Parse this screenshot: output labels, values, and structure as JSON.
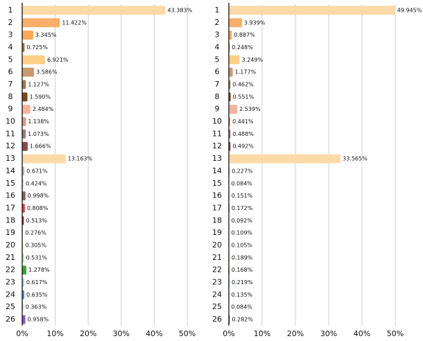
{
  "chart_data": [
    {
      "type": "bar",
      "orientation": "horizontal",
      "categories": [
        "1",
        "2",
        "3",
        "4",
        "5",
        "6",
        "7",
        "8",
        "9",
        "10",
        "11",
        "12",
        "13",
        "14",
        "15",
        "16",
        "17",
        "18",
        "19",
        "20",
        "21",
        "22",
        "23",
        "24",
        "25",
        "26"
      ],
      "values": [
        43.383,
        11.422,
        3.345,
        0.725,
        6.921,
        3.586,
        1.127,
        1.59,
        2.484,
        1.138,
        1.073,
        1.666,
        13.163,
        0.671,
        0.424,
        0.998,
        0.808,
        0.513,
        0.276,
        0.305,
        0.531,
        1.278,
        0.617,
        0.635,
        0.363,
        0.958
      ],
      "value_labels": [
        "43.383%",
        "11.422%",
        "3.345%",
        "0.725%",
        "6.921%",
        "3.586%",
        "1.127%",
        "1.590%",
        "2.484%",
        "1.138%",
        "1.073%",
        "1.666%",
        "13.163%",
        "0.671%",
        "0.424%",
        "0.998%",
        "0.808%",
        "0.513%",
        "0.276%",
        "0.305%",
        "0.531%",
        "1.278%",
        "0.617%",
        "0.635%",
        "0.363%",
        "0.958%"
      ],
      "colors": [
        "#fdd9a8",
        "#fdae6b",
        "#fca75a",
        "#a0703c",
        "#fdd08a",
        "#c99a6b",
        "#9c7a5a",
        "#7a4a1e",
        "#f4b3a0",
        "#d49a8a",
        "#a07a7a",
        "#8a4a4a",
        "#fdd9a8",
        "#c0b8b0",
        "#d8d8d8",
        "#7a6a5a",
        "#e04040",
        "#b03030",
        "#f0e8b0",
        "#f0e0b0",
        "#c0e0b0",
        "#40a040",
        "#b0d0f0",
        "#5090d0",
        "#d8d0f0",
        "#8060c0"
      ],
      "xlim": [
        0,
        50
      ],
      "xticks": [
        {
          "value": 0,
          "label": "0%"
        },
        {
          "value": 10,
          "label": "10%"
        },
        {
          "value": 20,
          "label": "20%"
        },
        {
          "value": 30,
          "label": "30%"
        },
        {
          "value": 40,
          "label": "40%"
        },
        {
          "value": 50,
          "label": "50%"
        }
      ],
      "grid": true
    },
    {
      "type": "bar",
      "orientation": "horizontal",
      "categories": [
        "1",
        "2",
        "3",
        "4",
        "5",
        "6",
        "7",
        "8",
        "9",
        "10",
        "11",
        "12",
        "13",
        "14",
        "15",
        "16",
        "17",
        "18",
        "19",
        "20",
        "21",
        "22",
        "23",
        "24",
        "25",
        "26"
      ],
      "values": [
        49.945,
        3.939,
        0.887,
        0.248,
        3.249,
        1.177,
        0.462,
        0.551,
        2.539,
        0.441,
        0.488,
        0.492,
        33.565,
        0.227,
        0.084,
        0.151,
        0.172,
        0.092,
        0.109,
        0.105,
        0.189,
        0.168,
        0.219,
        0.135,
        0.084,
        0.282
      ],
      "value_labels": [
        "49.945%",
        "3.939%",
        "0.887%",
        "0.248%",
        "3.249%",
        "1.177%",
        "0.462%",
        "0.551%",
        "2.539%",
        "0.441%",
        "0.488%",
        "0.492%",
        "33.565%",
        "0.227%",
        "0.084%",
        "0.151%",
        "0.172%",
        "0.092%",
        "0.109%",
        "0.105%",
        "0.189%",
        "0.168%",
        "0.219%",
        "0.135%",
        "0.084%",
        "0.282%"
      ],
      "colors": [
        "#fdd9a8",
        "#fdae6b",
        "#fca75a",
        "#a0703c",
        "#fdd08a",
        "#c99a6b",
        "#9c7a5a",
        "#7a4a1e",
        "#f4b3a0",
        "#d49a8a",
        "#a07a7a",
        "#8a4a4a",
        "#fdd9a8",
        "#c0b8b0",
        "#d8d8d8",
        "#7a6a5a",
        "#e04040",
        "#b03030",
        "#f0e8b0",
        "#f0e0b0",
        "#c0e0b0",
        "#40a040",
        "#b0d0f0",
        "#5090d0",
        "#d8d0f0",
        "#8060c0"
      ],
      "xlim": [
        0,
        50
      ],
      "xticks": [
        {
          "value": 0,
          "label": "0%"
        },
        {
          "value": 10,
          "label": "10%"
        },
        {
          "value": 20,
          "label": "20%"
        },
        {
          "value": 30,
          "label": "30%"
        },
        {
          "value": 40,
          "label": "40%"
        },
        {
          "value": 50,
          "label": "50%"
        }
      ],
      "grid": true
    }
  ]
}
